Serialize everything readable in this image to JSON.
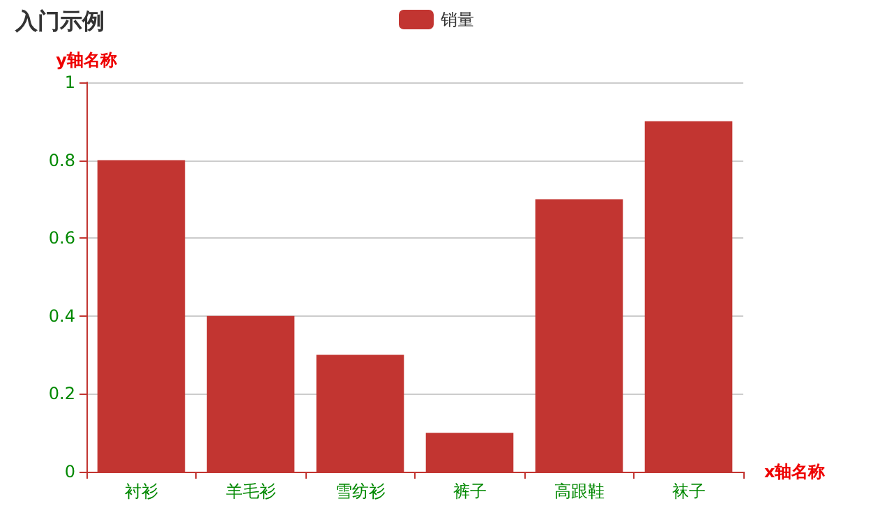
{
  "chart_data": {
    "type": "bar",
    "title": "入门示例",
    "xlabel": "x轴名称",
    "ylabel": "y轴名称",
    "categories": [
      "衬衫",
      "羊毛衫",
      "雪纺衫",
      "裤子",
      "高跟鞋",
      "袜子"
    ],
    "series": [
      {
        "name": "销量",
        "color": "#c23531",
        "values": [
          0.8,
          0.4,
          0.3,
          0.1,
          0.7,
          0.9
        ]
      }
    ],
    "ylim": [
      0,
      1
    ],
    "yticks": [
      0,
      0.2,
      0.4,
      0.6,
      0.8,
      1
    ],
    "grid": "y",
    "legend": "top"
  }
}
